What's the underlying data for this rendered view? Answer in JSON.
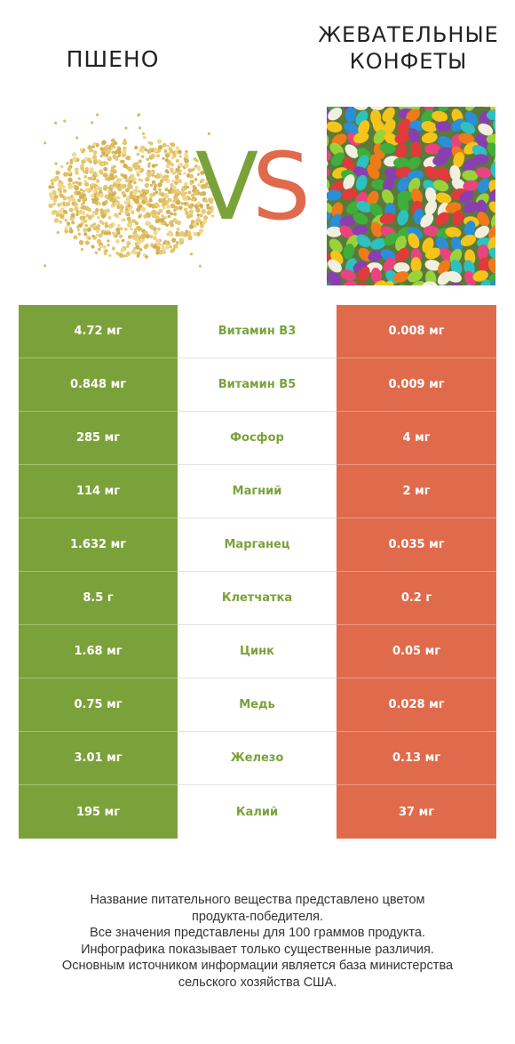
{
  "header": {
    "left_title": "ПШЕНО",
    "right_title_line1": "ЖЕВАТЕЛЬНЫЕ",
    "right_title_line2": "КОНФЕТЫ",
    "vs_v": "V",
    "vs_s": "S"
  },
  "colors": {
    "left_accent": "#7ba23a",
    "right_accent": "#e06b4c"
  },
  "images": {
    "left": "millet-grain-pile",
    "right": "colorful-jelly-beans"
  },
  "rows": [
    {
      "left": "4.72 мг",
      "name": "Витамин B3",
      "right": "0.008 мг"
    },
    {
      "left": "0.848 мг",
      "name": "Витамин B5",
      "right": "0.009 мг"
    },
    {
      "left": "285 мг",
      "name": "Фосфор",
      "right": "4 мг"
    },
    {
      "left": "114 мг",
      "name": "Магний",
      "right": "2 мг"
    },
    {
      "left": "1.632 мг",
      "name": "Марганец",
      "right": "0.035 мг"
    },
    {
      "left": "8.5 г",
      "name": "Клетчатка",
      "right": "0.2 г"
    },
    {
      "left": "1.68 мг",
      "name": "Цинк",
      "right": "0.05 мг"
    },
    {
      "left": "0.75 мг",
      "name": "Медь",
      "right": "0.028 мг"
    },
    {
      "left": "3.01 мг",
      "name": "Железо",
      "right": "0.13 мг"
    },
    {
      "left": "195 мг",
      "name": "Калий",
      "right": "37 мг"
    }
  ],
  "footer": {
    "line1": "Название питательного вещества представлено цветом",
    "line2": "продукта-победителя.",
    "line3": "Все значения представлены для 100 граммов продукта.",
    "line4": "Инфографика показывает только существенные различия.",
    "line5": "Основным источником информации является база министерства",
    "line6": "сельского хозяйства США."
  }
}
